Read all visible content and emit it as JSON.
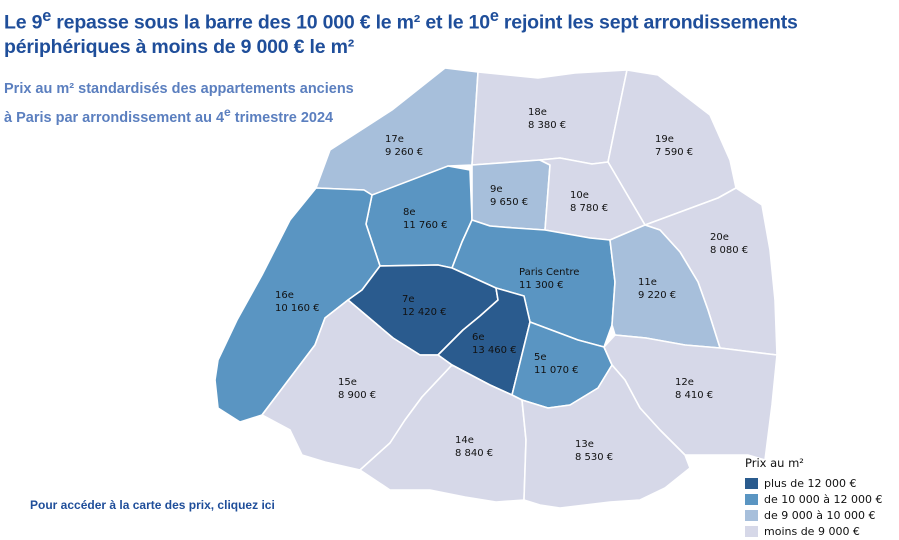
{
  "header": {
    "headline_part1": "Le 9",
    "headline_sup1": "e",
    "headline_part2": " repasse sous la barre des 10 000 € le m² et le 10",
    "headline_sup2": "e",
    "headline_part3": " rejoint les sept arrondissements périphériques à moins de 9 000 € le m²",
    "subtitle_line1": "Prix au m² standardisés des appartements anciens",
    "subtitle_line2_part1": "à Paris par arrondissement au 4",
    "subtitle_line2_sup": "e",
    "subtitle_line2_part2": " trimestre 2024"
  },
  "link": {
    "label": "Pour accéder à la carte des prix, cliquez ici"
  },
  "legend": {
    "title": "Prix au m²",
    "items": [
      {
        "label": "plus de 12 000 €",
        "color": "#2a5b8e"
      },
      {
        "label": "de 10 000 à 12 000 €",
        "color": "#5a95c2"
      },
      {
        "label": "de 9 000 à 10 000 €",
        "color": "#a7bfdb"
      },
      {
        "label": "moins de 9 000 €",
        "color": "#d6d8e8"
      }
    ]
  },
  "arrondissements": [
    {
      "id": "17",
      "name": "17e",
      "price": "9 260 €",
      "class": 2
    },
    {
      "id": "18",
      "name": "18e",
      "price": "8 380 €",
      "class": 3
    },
    {
      "id": "19",
      "name": "19e",
      "price": "7 590 €",
      "class": 3
    },
    {
      "id": "8",
      "name": "8e",
      "price": "11 760 €",
      "class": 1
    },
    {
      "id": "9",
      "name": "9e",
      "price": "9 650 €",
      "class": 2
    },
    {
      "id": "10",
      "name": "10e",
      "price": "8 780 €",
      "class": 3
    },
    {
      "id": "16",
      "name": "16e",
      "price": "10 160 €",
      "class": 1
    },
    {
      "id": "centre",
      "name": "Paris Centre",
      "price": "11 300 €",
      "class": 1
    },
    {
      "id": "20",
      "name": "20e",
      "price": "8 080 €",
      "class": 3
    },
    {
      "id": "7",
      "name": "7e",
      "price": "12 420 €",
      "class": 0
    },
    {
      "id": "11",
      "name": "11e",
      "price": "9 220 €",
      "class": 2
    },
    {
      "id": "6",
      "name": "6e",
      "price": "13 460 €",
      "class": 0
    },
    {
      "id": "5",
      "name": "5e",
      "price": "11 070 €",
      "class": 1
    },
    {
      "id": "15",
      "name": "15e",
      "price": "8 900 €",
      "class": 3
    },
    {
      "id": "12",
      "name": "12e",
      "price": "8 410 €",
      "class": 3
    },
    {
      "id": "14",
      "name": "14e",
      "price": "8 840 €",
      "class": 3
    },
    {
      "id": "13",
      "name": "13e",
      "price": "8 530 €",
      "class": 3
    }
  ]
}
